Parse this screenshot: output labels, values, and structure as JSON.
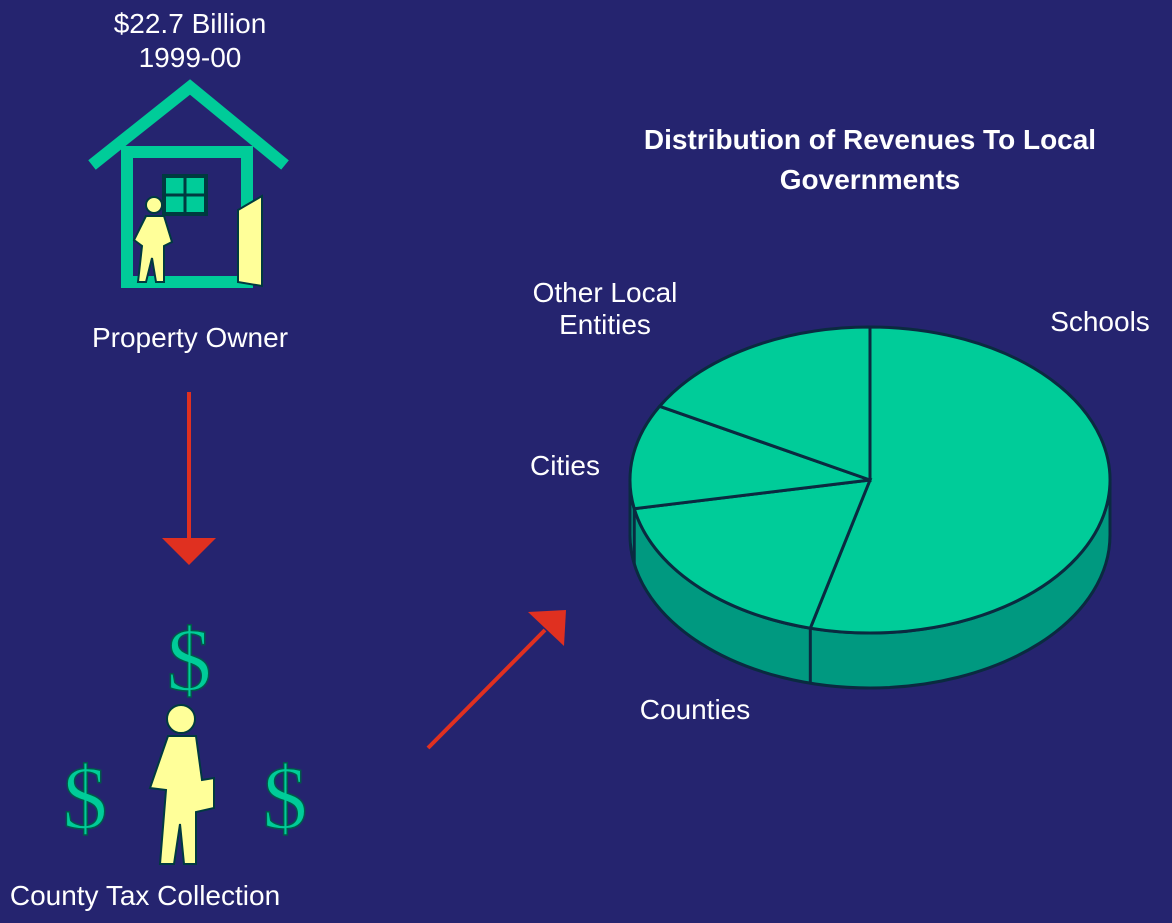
{
  "header": {
    "amount": "$22.7 Billion",
    "year": "1999-00"
  },
  "property_owner": "Property Owner",
  "collection_symbols": [
    "$",
    "$",
    "$"
  ],
  "collection": "County Tax Collection",
  "chart_data": {
    "type": "pie",
    "title": "Distribution of Revenues To Local Governments",
    "categories": [
      "Schools",
      "Counties",
      "Cities",
      "Other Local Entities"
    ],
    "values": [
      54,
      18,
      11,
      17
    ],
    "color": "#00cc99"
  }
}
